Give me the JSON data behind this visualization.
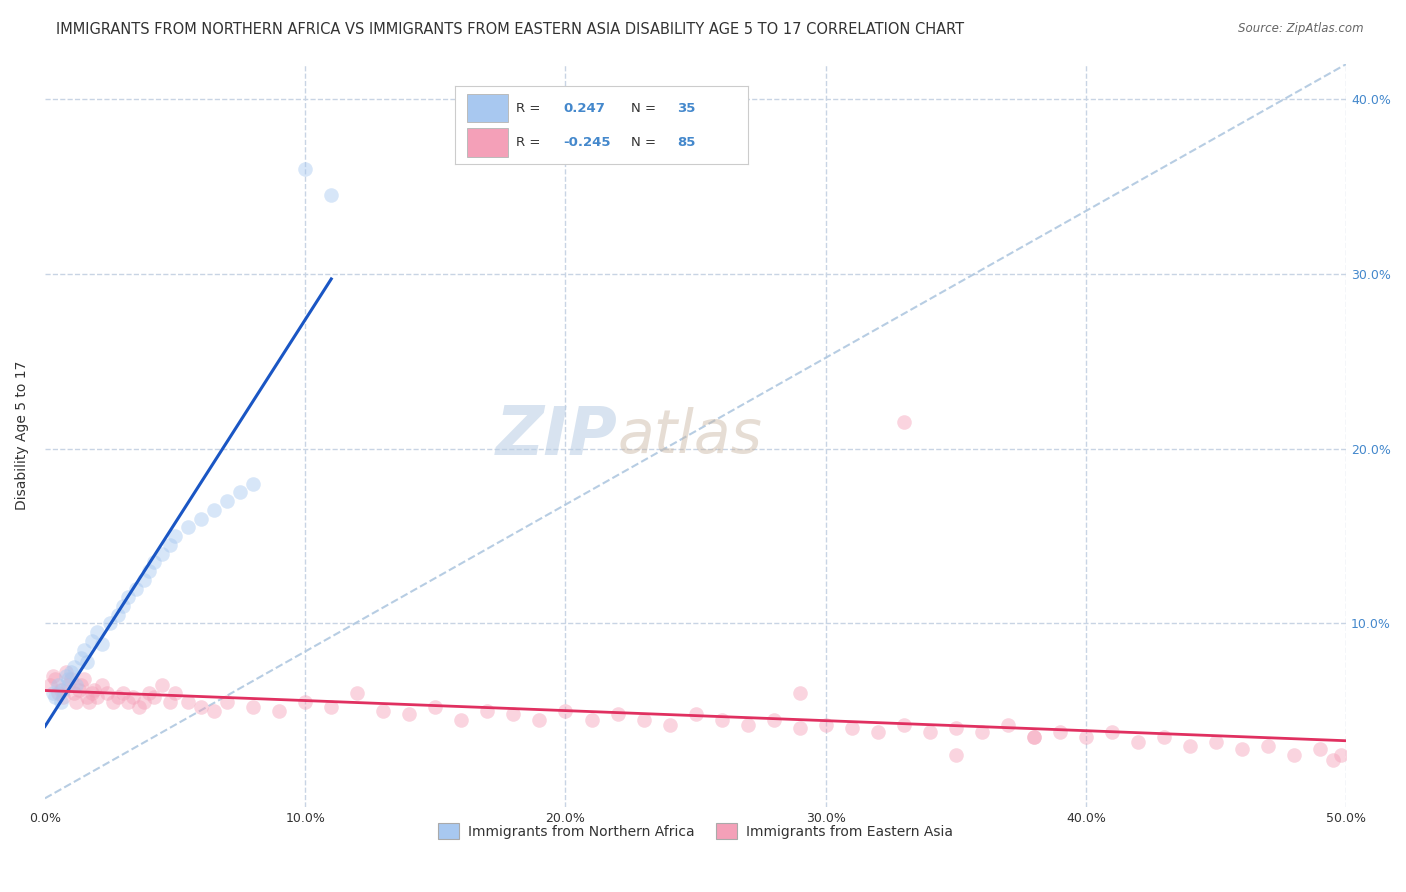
{
  "title": "IMMIGRANTS FROM NORTHERN AFRICA VS IMMIGRANTS FROM EASTERN ASIA DISABILITY AGE 5 TO 17 CORRELATION CHART",
  "source": "Source: ZipAtlas.com",
  "ylabel": "Disability Age 5 to 17",
  "xlim": [
    0.0,
    0.5
  ],
  "ylim": [
    -0.005,
    0.42
  ],
  "blue_color": "#A8C8F0",
  "pink_color": "#F4A0B8",
  "blue_line_color": "#1A56C4",
  "pink_line_color": "#E03060",
  "dashed_line_color": "#B0C8E0",
  "watermark_zip": "ZIP",
  "watermark_atlas": "atlas",
  "legend_r_blue": "0.247",
  "legend_n_blue": "35",
  "legend_r_pink": "-0.245",
  "legend_n_pink": "85",
  "blue_scatter_x": [
    0.003,
    0.004,
    0.005,
    0.006,
    0.007,
    0.008,
    0.009,
    0.01,
    0.011,
    0.012,
    0.014,
    0.015,
    0.016,
    0.018,
    0.02,
    0.022,
    0.025,
    0.028,
    0.03,
    0.032,
    0.035,
    0.038,
    0.04,
    0.042,
    0.045,
    0.048,
    0.05,
    0.055,
    0.06,
    0.065,
    0.07,
    0.075,
    0.08,
    0.1,
    0.11
  ],
  "blue_scatter_y": [
    0.06,
    0.058,
    0.065,
    0.055,
    0.062,
    0.07,
    0.068,
    0.072,
    0.075,
    0.065,
    0.08,
    0.085,
    0.078,
    0.09,
    0.095,
    0.088,
    0.1,
    0.105,
    0.11,
    0.115,
    0.12,
    0.125,
    0.13,
    0.135,
    0.14,
    0.145,
    0.15,
    0.155,
    0.16,
    0.165,
    0.17,
    0.175,
    0.18,
    0.36,
    0.345
  ],
  "pink_scatter_x": [
    0.002,
    0.003,
    0.004,
    0.005,
    0.006,
    0.007,
    0.008,
    0.009,
    0.01,
    0.011,
    0.012,
    0.013,
    0.014,
    0.015,
    0.016,
    0.017,
    0.018,
    0.019,
    0.02,
    0.022,
    0.024,
    0.026,
    0.028,
    0.03,
    0.032,
    0.034,
    0.036,
    0.038,
    0.04,
    0.042,
    0.045,
    0.048,
    0.05,
    0.055,
    0.06,
    0.065,
    0.07,
    0.08,
    0.09,
    0.1,
    0.11,
    0.12,
    0.13,
    0.14,
    0.15,
    0.16,
    0.17,
    0.18,
    0.19,
    0.2,
    0.21,
    0.22,
    0.23,
    0.24,
    0.25,
    0.26,
    0.27,
    0.28,
    0.29,
    0.3,
    0.31,
    0.32,
    0.33,
    0.34,
    0.35,
    0.36,
    0.37,
    0.38,
    0.39,
    0.4,
    0.41,
    0.42,
    0.43,
    0.44,
    0.45,
    0.46,
    0.47,
    0.48,
    0.49,
    0.495,
    0.498,
    0.33,
    0.38,
    0.29,
    0.35
  ],
  "pink_scatter_y": [
    0.065,
    0.07,
    0.068,
    0.06,
    0.062,
    0.058,
    0.072,
    0.065,
    0.068,
    0.06,
    0.055,
    0.062,
    0.065,
    0.068,
    0.058,
    0.055,
    0.06,
    0.062,
    0.058,
    0.065,
    0.06,
    0.055,
    0.058,
    0.06,
    0.055,
    0.058,
    0.052,
    0.055,
    0.06,
    0.058,
    0.065,
    0.055,
    0.06,
    0.055,
    0.052,
    0.05,
    0.055,
    0.052,
    0.05,
    0.055,
    0.052,
    0.06,
    0.05,
    0.048,
    0.052,
    0.045,
    0.05,
    0.048,
    0.045,
    0.05,
    0.045,
    0.048,
    0.045,
    0.042,
    0.048,
    0.045,
    0.042,
    0.045,
    0.04,
    0.042,
    0.04,
    0.038,
    0.042,
    0.038,
    0.04,
    0.038,
    0.042,
    0.035,
    0.038,
    0.035,
    0.038,
    0.032,
    0.035,
    0.03,
    0.032,
    0.028,
    0.03,
    0.025,
    0.028,
    0.022,
    0.025,
    0.215,
    0.035,
    0.06,
    0.025
  ],
  "title_fontsize": 10.5,
  "axis_label_fontsize": 10,
  "tick_fontsize": 9,
  "legend_fontsize": 10,
  "watermark_fontsize": 48,
  "scatter_size": 110,
  "scatter_alpha": 0.45,
  "background_color": "#FFFFFF",
  "grid_color": "#C8D4E4",
  "right_tick_color": "#4488CC",
  "label_color": "#333333"
}
